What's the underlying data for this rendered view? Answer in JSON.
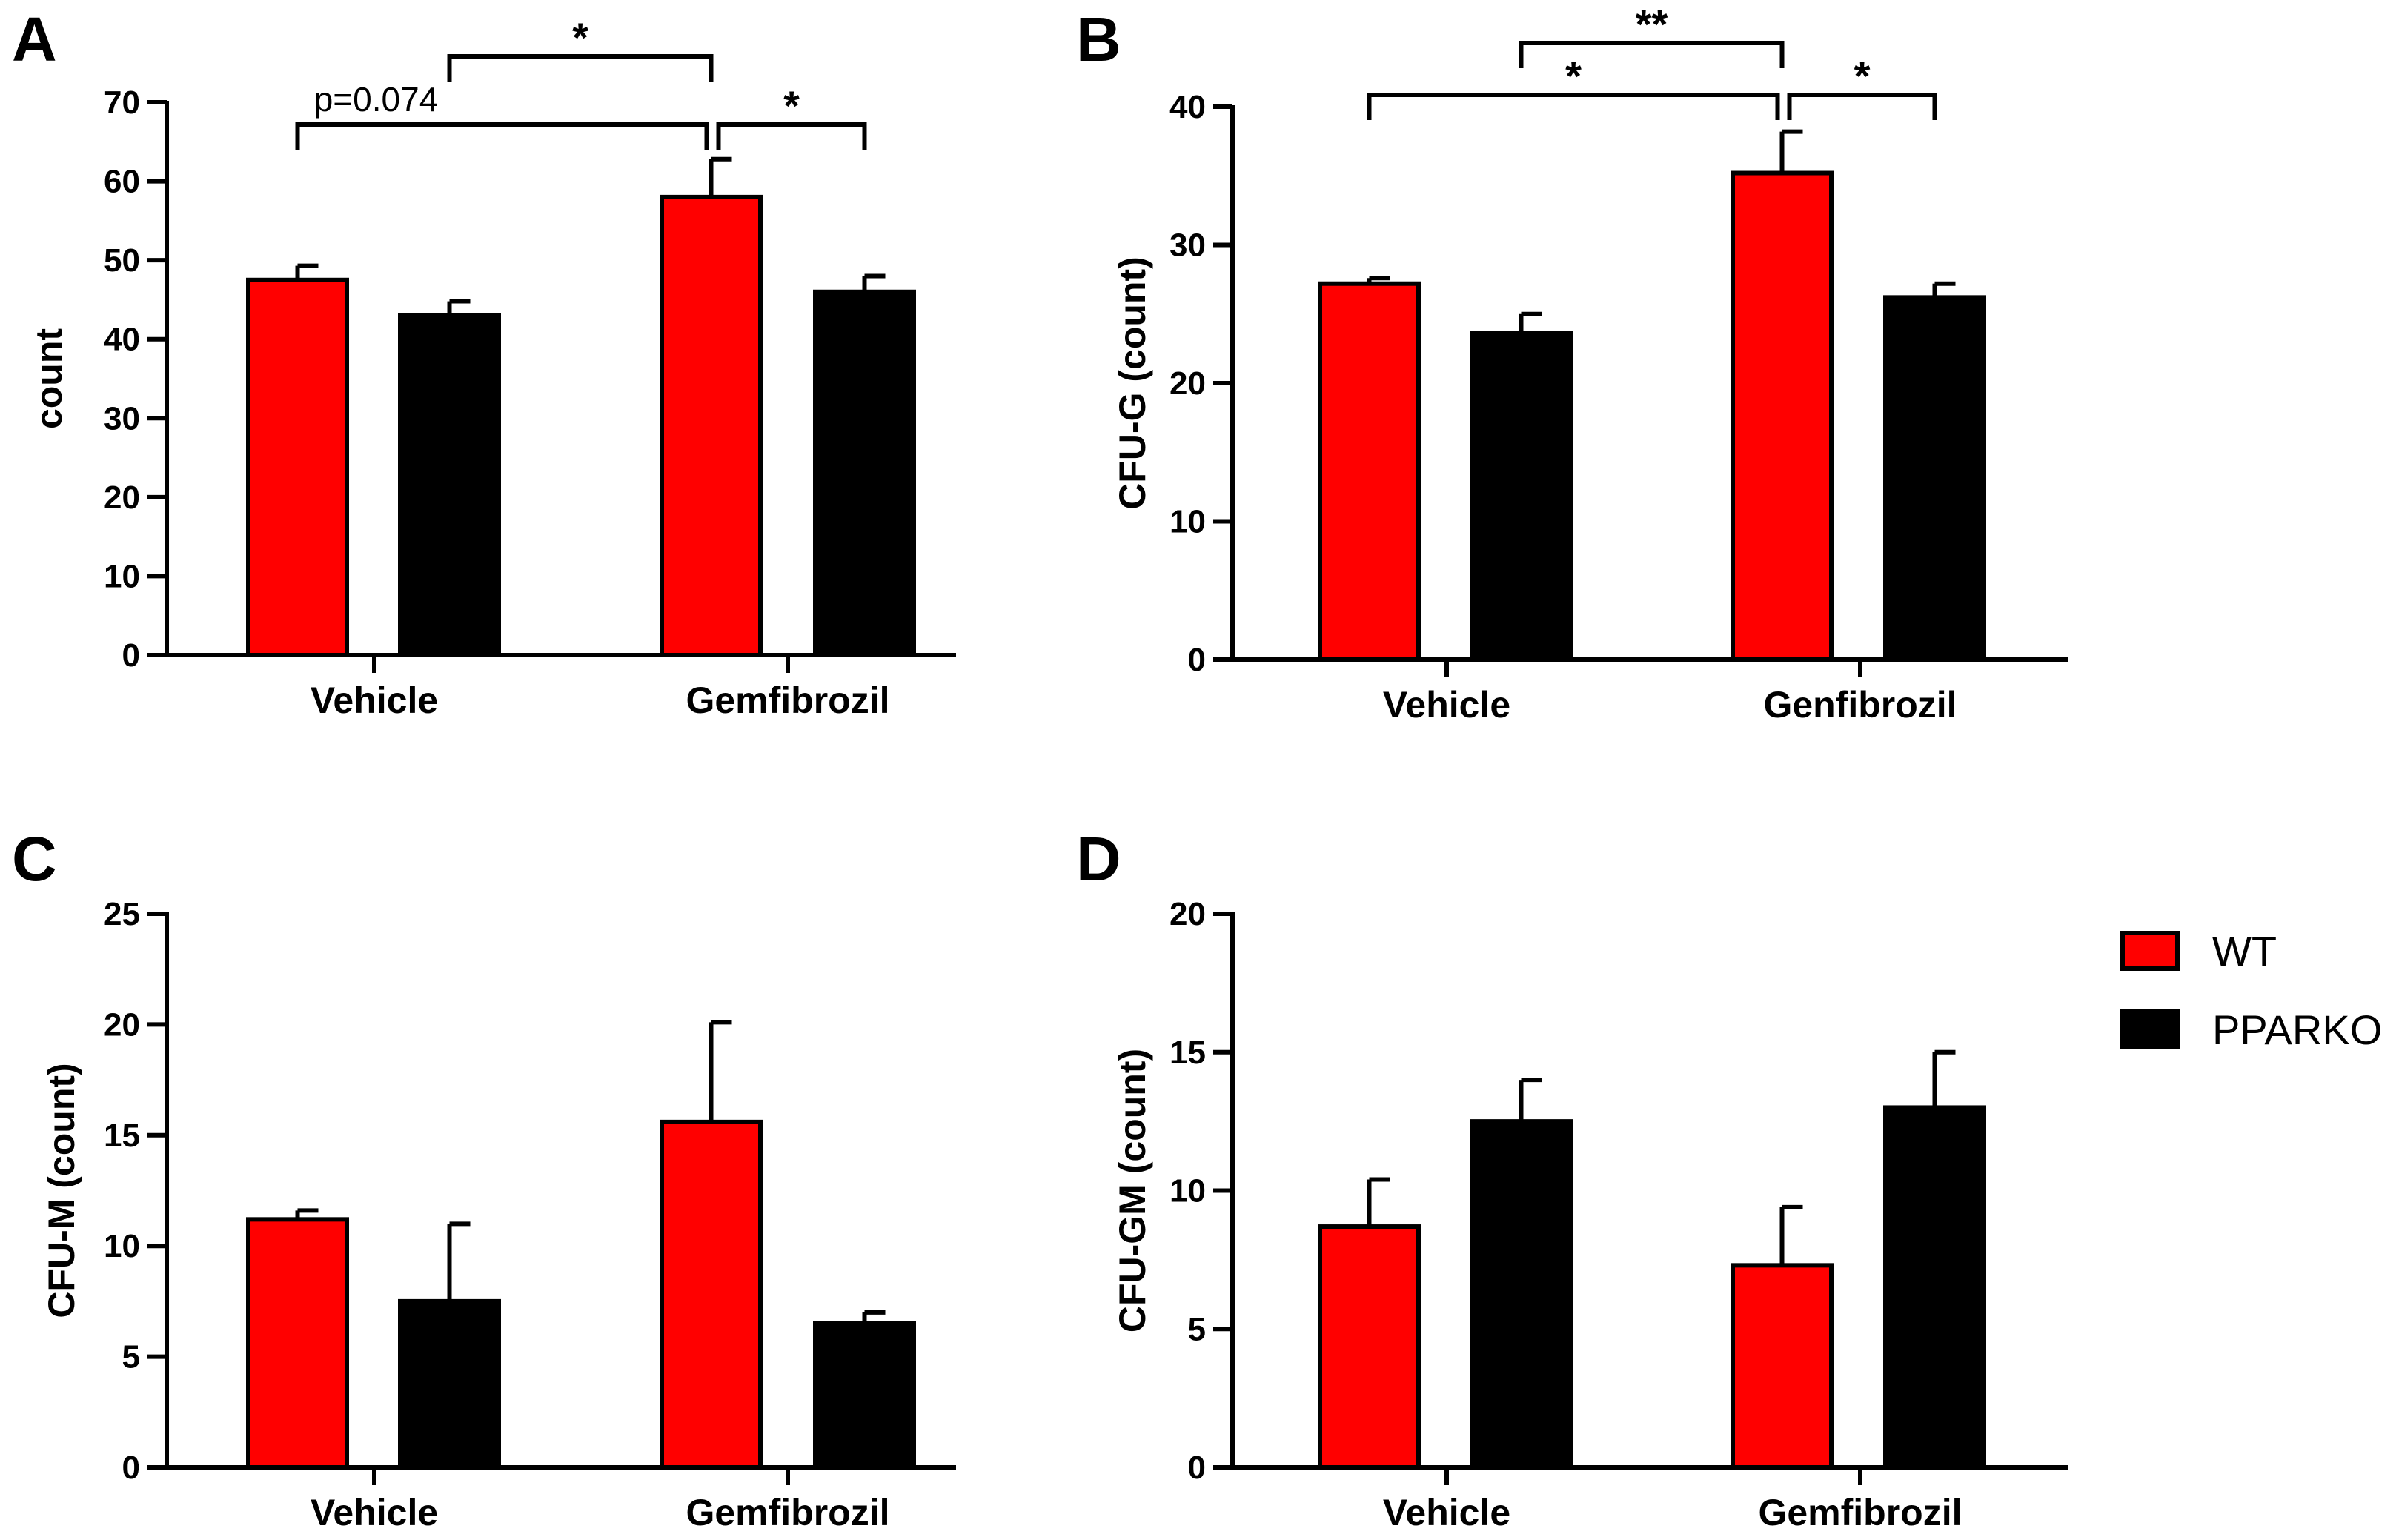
{
  "colors": {
    "wt": "#ff0000",
    "ppparko": "#000000",
    "axis": "#000000"
  },
  "legend": [
    {
      "name": "WT",
      "color": "#ff0000"
    },
    {
      "name": "PPARKO",
      "color": "#000000"
    }
  ],
  "chart_data": [
    {
      "type": "bar",
      "panel": "A",
      "ylabel": "count",
      "ylim": [
        0,
        70
      ],
      "yticks": [
        0,
        10,
        20,
        30,
        40,
        50,
        60,
        70
      ],
      "categories": [
        "Vehicle",
        "Gemfibrozil"
      ],
      "series": [
        {
          "name": "WT",
          "values": [
            47.5,
            58
          ],
          "errors": [
            1.8,
            4.8
          ]
        },
        {
          "name": "PPARKO",
          "values": [
            43,
            46
          ],
          "errors": [
            1.8,
            2.0
          ]
        }
      ],
      "annotations": [
        {
          "from": 0,
          "to": 2,
          "label": "p=0.074",
          "level": 1
        },
        {
          "from": 2,
          "to": 3,
          "label": "*",
          "level": 1
        },
        {
          "from": 1,
          "to": 2,
          "label": "*",
          "level": 2
        }
      ]
    },
    {
      "type": "bar",
      "panel": "B",
      "ylabel": "CFU-G (count)",
      "ylim": [
        0,
        40
      ],
      "yticks": [
        0,
        10,
        20,
        30,
        40
      ],
      "categories": [
        "Vehicle",
        "Genfibrozil"
      ],
      "series": [
        {
          "name": "WT",
          "values": [
            27.2,
            35.2
          ],
          "errors": [
            0.4,
            3.0
          ]
        },
        {
          "name": "PPARKO",
          "values": [
            23.6,
            26.2
          ],
          "errors": [
            1.4,
            1.0
          ]
        }
      ],
      "annotations": [
        {
          "from": 0,
          "to": 2,
          "label": "*",
          "level": 1
        },
        {
          "from": 2,
          "to": 3,
          "label": "*",
          "level": 1
        },
        {
          "from": 1,
          "to": 2,
          "label": "**",
          "level": 2
        }
      ]
    },
    {
      "type": "bar",
      "panel": "C",
      "ylabel": "CFU-M (count)",
      "ylim": [
        0,
        25
      ],
      "yticks": [
        0,
        5,
        10,
        15,
        20,
        25
      ],
      "categories": [
        "Vehicle",
        "Gemfibrozil"
      ],
      "series": [
        {
          "name": "WT",
          "values": [
            11.2,
            15.6
          ],
          "errors": [
            0.4,
            4.5
          ]
        },
        {
          "name": "PPARKO",
          "values": [
            7.5,
            6.5
          ],
          "errors": [
            3.5,
            0.5
          ]
        }
      ],
      "annotations": []
    },
    {
      "type": "bar",
      "panel": "D",
      "ylabel": "CFU-GM (count)",
      "ylim": [
        0,
        20
      ],
      "yticks": [
        0,
        5,
        10,
        15,
        20
      ],
      "categories": [
        "Vehicle",
        "Gemfibrozil"
      ],
      "series": [
        {
          "name": "WT",
          "values": [
            8.7,
            7.3
          ],
          "errors": [
            1.7,
            2.1
          ]
        },
        {
          "name": "PPARKO",
          "values": [
            12.5,
            13.0
          ],
          "errors": [
            1.5,
            2.0
          ]
        }
      ],
      "annotations": []
    }
  ]
}
